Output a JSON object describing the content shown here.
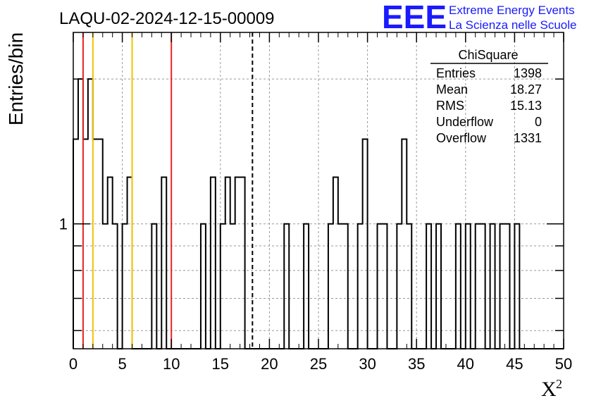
{
  "chart_data": {
    "type": "histogram",
    "title": "LAQU-02-2024-12-15-00009",
    "xlabel": "X",
    "xlabel_superscript": "2",
    "ylabel": "Entries/bin",
    "xlim": [
      0,
      50
    ],
    "ylim": [
      0.55,
      2.5
    ],
    "y_scale": "log",
    "grid": true,
    "x_ticks": [
      0,
      5,
      10,
      15,
      20,
      25,
      30,
      35,
      40,
      45,
      50
    ],
    "x_tick_labels": [
      "0",
      "5",
      "10",
      "15",
      "20",
      "25",
      "30",
      "35",
      "40",
      "45",
      "50"
    ],
    "y_tick_labels": [
      {
        "value": 1,
        "label": "1"
      }
    ],
    "bin_width": 0.5,
    "bins": [
      {
        "x": 0.0,
        "y": 1.5
      },
      {
        "x": 0.5,
        "y": 2.0
      },
      {
        "x": 1.0,
        "y": 1.5
      },
      {
        "x": 1.5,
        "y": 2.0
      },
      {
        "x": 2.0,
        "y": 1.5
      },
      {
        "x": 2.5,
        "y": 1.5
      },
      {
        "x": 3.0,
        "y": 1.0
      },
      {
        "x": 3.5,
        "y": 1.25
      },
      {
        "x": 4.0,
        "y": 1.0
      },
      {
        "x": 4.5,
        "y": 0.55
      },
      {
        "x": 5.0,
        "y": 1.0
      },
      {
        "x": 5.5,
        "y": 1.25
      },
      {
        "x": 6.0,
        "y": 0.55
      },
      {
        "x": 6.5,
        "y": 0.55
      },
      {
        "x": 7.0,
        "y": 0.55
      },
      {
        "x": 7.5,
        "y": 0.55
      },
      {
        "x": 8.0,
        "y": 1.0
      },
      {
        "x": 8.5,
        "y": 0.55
      },
      {
        "x": 9.0,
        "y": 1.25
      },
      {
        "x": 9.5,
        "y": 0.55
      },
      {
        "x": 10.0,
        "y": 0.55
      },
      {
        "x": 10.5,
        "y": 0.55
      },
      {
        "x": 11.0,
        "y": 0.55
      },
      {
        "x": 11.5,
        "y": 0.55
      },
      {
        "x": 12.0,
        "y": 0.55
      },
      {
        "x": 12.5,
        "y": 0.55
      },
      {
        "x": 13.0,
        "y": 1.0
      },
      {
        "x": 13.5,
        "y": 0.55
      },
      {
        "x": 14.0,
        "y": 1.25
      },
      {
        "x": 14.5,
        "y": 0.55
      },
      {
        "x": 15.0,
        "y": 1.0
      },
      {
        "x": 15.5,
        "y": 1.25
      },
      {
        "x": 16.0,
        "y": 1.0
      },
      {
        "x": 16.5,
        "y": 1.25
      },
      {
        "x": 17.0,
        "y": 1.25
      },
      {
        "x": 17.5,
        "y": 0.55
      },
      {
        "x": 18.0,
        "y": 0.55
      },
      {
        "x": 18.5,
        "y": 0.55
      },
      {
        "x": 19.0,
        "y": 0.55
      },
      {
        "x": 19.5,
        "y": 0.55
      },
      {
        "x": 20.0,
        "y": 0.55
      },
      {
        "x": 20.5,
        "y": 0.55
      },
      {
        "x": 21.0,
        "y": 0.55
      },
      {
        "x": 21.5,
        "y": 1.0
      },
      {
        "x": 22.0,
        "y": 0.55
      },
      {
        "x": 22.5,
        "y": 0.55
      },
      {
        "x": 23.0,
        "y": 0.55
      },
      {
        "x": 23.5,
        "y": 1.0
      },
      {
        "x": 24.0,
        "y": 0.55
      },
      {
        "x": 24.5,
        "y": 0.55
      },
      {
        "x": 25.0,
        "y": 0.55
      },
      {
        "x": 25.5,
        "y": 0.55
      },
      {
        "x": 26.0,
        "y": 1.0
      },
      {
        "x": 26.5,
        "y": 1.25
      },
      {
        "x": 27.0,
        "y": 1.0
      },
      {
        "x": 27.5,
        "y": 1.0
      },
      {
        "x": 28.0,
        "y": 0.55
      },
      {
        "x": 28.5,
        "y": 0.55
      },
      {
        "x": 29.0,
        "y": 1.0
      },
      {
        "x": 29.5,
        "y": 1.5
      },
      {
        "x": 30.0,
        "y": 0.55
      },
      {
        "x": 30.5,
        "y": 0.55
      },
      {
        "x": 31.0,
        "y": 1.0
      },
      {
        "x": 31.5,
        "y": 1.0
      },
      {
        "x": 32.0,
        "y": 0.55
      },
      {
        "x": 32.5,
        "y": 0.55
      },
      {
        "x": 33.0,
        "y": 1.0
      },
      {
        "x": 33.5,
        "y": 1.5
      },
      {
        "x": 34.0,
        "y": 1.0
      },
      {
        "x": 34.5,
        "y": 0.55
      },
      {
        "x": 35.0,
        "y": 0.55
      },
      {
        "x": 35.5,
        "y": 0.55
      },
      {
        "x": 36.0,
        "y": 1.0
      },
      {
        "x": 36.5,
        "y": 0.55
      },
      {
        "x": 37.0,
        "y": 1.0
      },
      {
        "x": 37.5,
        "y": 0.55
      },
      {
        "x": 38.0,
        "y": 0.55
      },
      {
        "x": 38.5,
        "y": 0.55
      },
      {
        "x": 39.0,
        "y": 1.0
      },
      {
        "x": 39.5,
        "y": 0.55
      },
      {
        "x": 40.0,
        "y": 1.0
      },
      {
        "x": 40.5,
        "y": 0.55
      },
      {
        "x": 41.0,
        "y": 1.0
      },
      {
        "x": 41.5,
        "y": 1.0
      },
      {
        "x": 42.0,
        "y": 0.55
      },
      {
        "x": 42.5,
        "y": 1.0
      },
      {
        "x": 43.0,
        "y": 0.55
      },
      {
        "x": 43.5,
        "y": 1.0
      },
      {
        "x": 44.0,
        "y": 1.0
      },
      {
        "x": 44.5,
        "y": 0.55
      },
      {
        "x": 45.0,
        "y": 1.0
      },
      {
        "x": 45.5,
        "y": 0.55
      },
      {
        "x": 46.0,
        "y": 0.55
      },
      {
        "x": 46.5,
        "y": 0.55
      },
      {
        "x": 47.0,
        "y": 0.55
      },
      {
        "x": 47.5,
        "y": 0.55
      },
      {
        "x": 48.0,
        "y": 0.55
      },
      {
        "x": 48.5,
        "y": 0.55
      },
      {
        "x": 49.0,
        "y": 0.55
      },
      {
        "x": 49.5,
        "y": 0.55
      }
    ],
    "vertical_lines": [
      {
        "x": 1.0,
        "color": "#e8231f",
        "style": "solid"
      },
      {
        "x": 2.0,
        "color": "#f2c200",
        "style": "solid"
      },
      {
        "x": 6.0,
        "color": "#f2c200",
        "style": "solid"
      },
      {
        "x": 10.0,
        "color": "#e8231f",
        "style": "solid"
      },
      {
        "x": 18.27,
        "color": "#000000",
        "style": "dashed"
      }
    ],
    "stats_box": {
      "title": "ChiSquare",
      "entries": [
        {
          "label": "Entries",
          "value": "1398"
        },
        {
          "label": "Mean",
          "value": "18.27"
        },
        {
          "label": "RMS",
          "value": "15.13"
        },
        {
          "label": "Underflow",
          "value": "0"
        },
        {
          "label": "Overflow",
          "value": "1331"
        }
      ]
    }
  },
  "logo": {
    "mark": "EEE",
    "line1": "Extreme Energy Events",
    "line2": "La Scienza nelle Scuole",
    "color": "#1a1aff"
  }
}
